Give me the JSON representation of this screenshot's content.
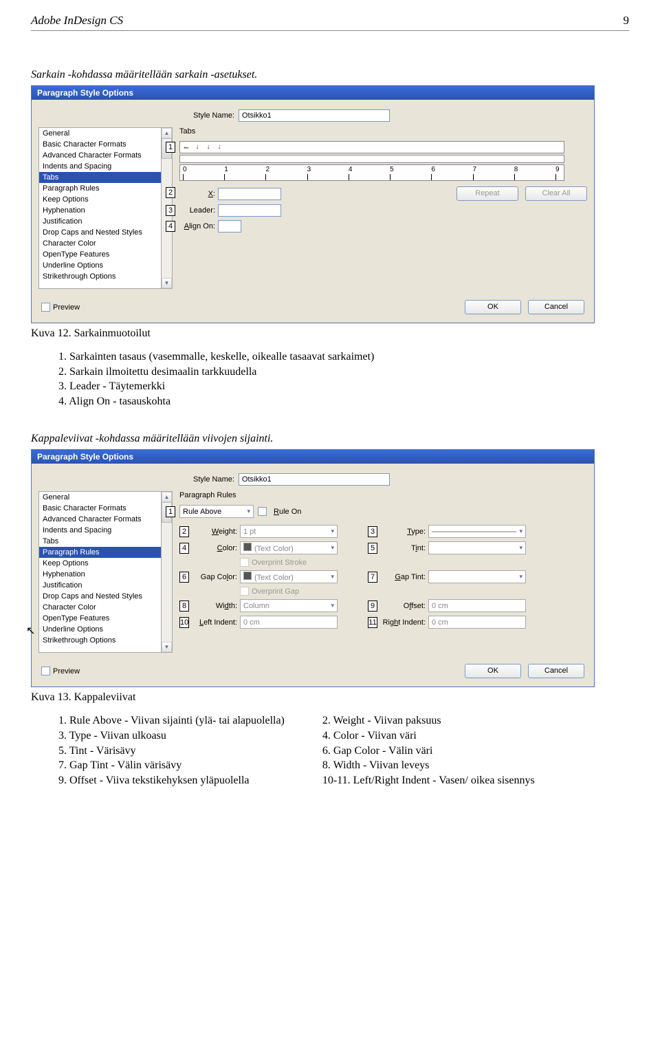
{
  "page": {
    "header_title": "Adobe InDesign CS",
    "page_number": "9"
  },
  "section1": {
    "intro": "Sarkain -kohdassa määritellään sarkain -asetukset.",
    "caption": "Kuva 12. Sarkainmuotoilut",
    "explain": [
      "Sarkainten tasaus (vasemmalle, keskelle, oikealle tasaavat sarkaimet)",
      "Sarkain ilmoitettu desimaalin tarkkuudella",
      "Leader - Täytemerkki",
      "Align On - tasauskohta"
    ]
  },
  "section2": {
    "intro": "Kappaleviivat -kohdassa määritellään viivojen sijainti.",
    "caption": "Kuva 13. Kappaleviivat",
    "left_col": [
      {
        "n": "1",
        "t": "Rule Above - Viivan sijainti (ylä- tai alapuolella)"
      },
      {
        "n": "3",
        "t": "Type - Viivan ulkoasu"
      },
      {
        "n": "5",
        "t": "Tint - Värisävy"
      },
      {
        "n": "7",
        "t": "Gap Tint - Välin värisävy"
      },
      {
        "n": "9",
        "t": "Offset - Viiva tekstikehyksen yläpuolella"
      }
    ],
    "right_col": [
      {
        "n": "2",
        "t": "Weight - Viivan paksuus"
      },
      {
        "n": "4",
        "t": "Color - Viivan väri"
      },
      {
        "n": "6",
        "t": "Gap Color - Välin väri"
      },
      {
        "n": "8",
        "t": "Width - Viivan leveys"
      },
      {
        "n": "10-11",
        "t": "Left/Right Indent - Vasen/ oikea sisennys"
      }
    ]
  },
  "dialog_common": {
    "title": "Paragraph Style Options",
    "style_name_label": "Style Name:",
    "style_name_value": "Otsikko1",
    "preview_label": "Preview",
    "ok": "OK",
    "cancel": "Cancel",
    "sidebar_items": [
      "General",
      "Basic Character Formats",
      "Advanced Character Formats",
      "Indents and Spacing",
      "Tabs",
      "Paragraph Rules",
      "Keep Options",
      "Hyphenation",
      "Justification",
      "Drop Caps and Nested Styles",
      "Character Color",
      "OpenType Features",
      "Underline Options",
      "Strikethrough Options"
    ]
  },
  "dialog1": {
    "panel_title": "Tabs",
    "selected_index": 4,
    "ruler_labels": [
      "0",
      "1",
      "2",
      "3",
      "4",
      "5",
      "6",
      "7",
      "8",
      "9"
    ],
    "x_label": "X:",
    "leader_label": "Leader:",
    "align_on_label": "Align On:",
    "repeat": "Repeat",
    "clear_all": "Clear All",
    "callouts": [
      "1",
      "2",
      "3",
      "4"
    ]
  },
  "dialog2": {
    "panel_title": "Paragraph Rules",
    "selected_index": 5,
    "rule_select": "Rule Above",
    "rule_on": "Rule On",
    "rows": {
      "weight_label": "Weight:",
      "weight_val": "1 pt",
      "type_label": "Type:",
      "color_label": "Color:",
      "color_val": "(Text Color)",
      "tint_label": "Tint:",
      "overprint_stroke": "Overprint Stroke",
      "gap_color_label": "Gap Color:",
      "gap_color_val": "(Text Color)",
      "gap_tint_label": "Gap Tint:",
      "overprint_gap": "Overprint Gap",
      "width_label": "Width:",
      "width_val": "Column",
      "offset_label": "Offset:",
      "offset_val": "0 cm",
      "left_indent_label": "Left Indent:",
      "left_indent_val": "0 cm",
      "right_indent_label": "Right Indent:",
      "right_indent_val": "0 cm"
    },
    "callouts": [
      "1",
      "2",
      "3",
      "4",
      "5",
      "6",
      "7",
      "8",
      "9",
      "10",
      "11"
    ]
  },
  "colors": {
    "titlebar_start": "#3a6bd8",
    "titlebar_end": "#2a53b0",
    "dialog_bg": "#e8e4d7",
    "selection": "#2a53b0",
    "border": "#7a9ac6"
  }
}
